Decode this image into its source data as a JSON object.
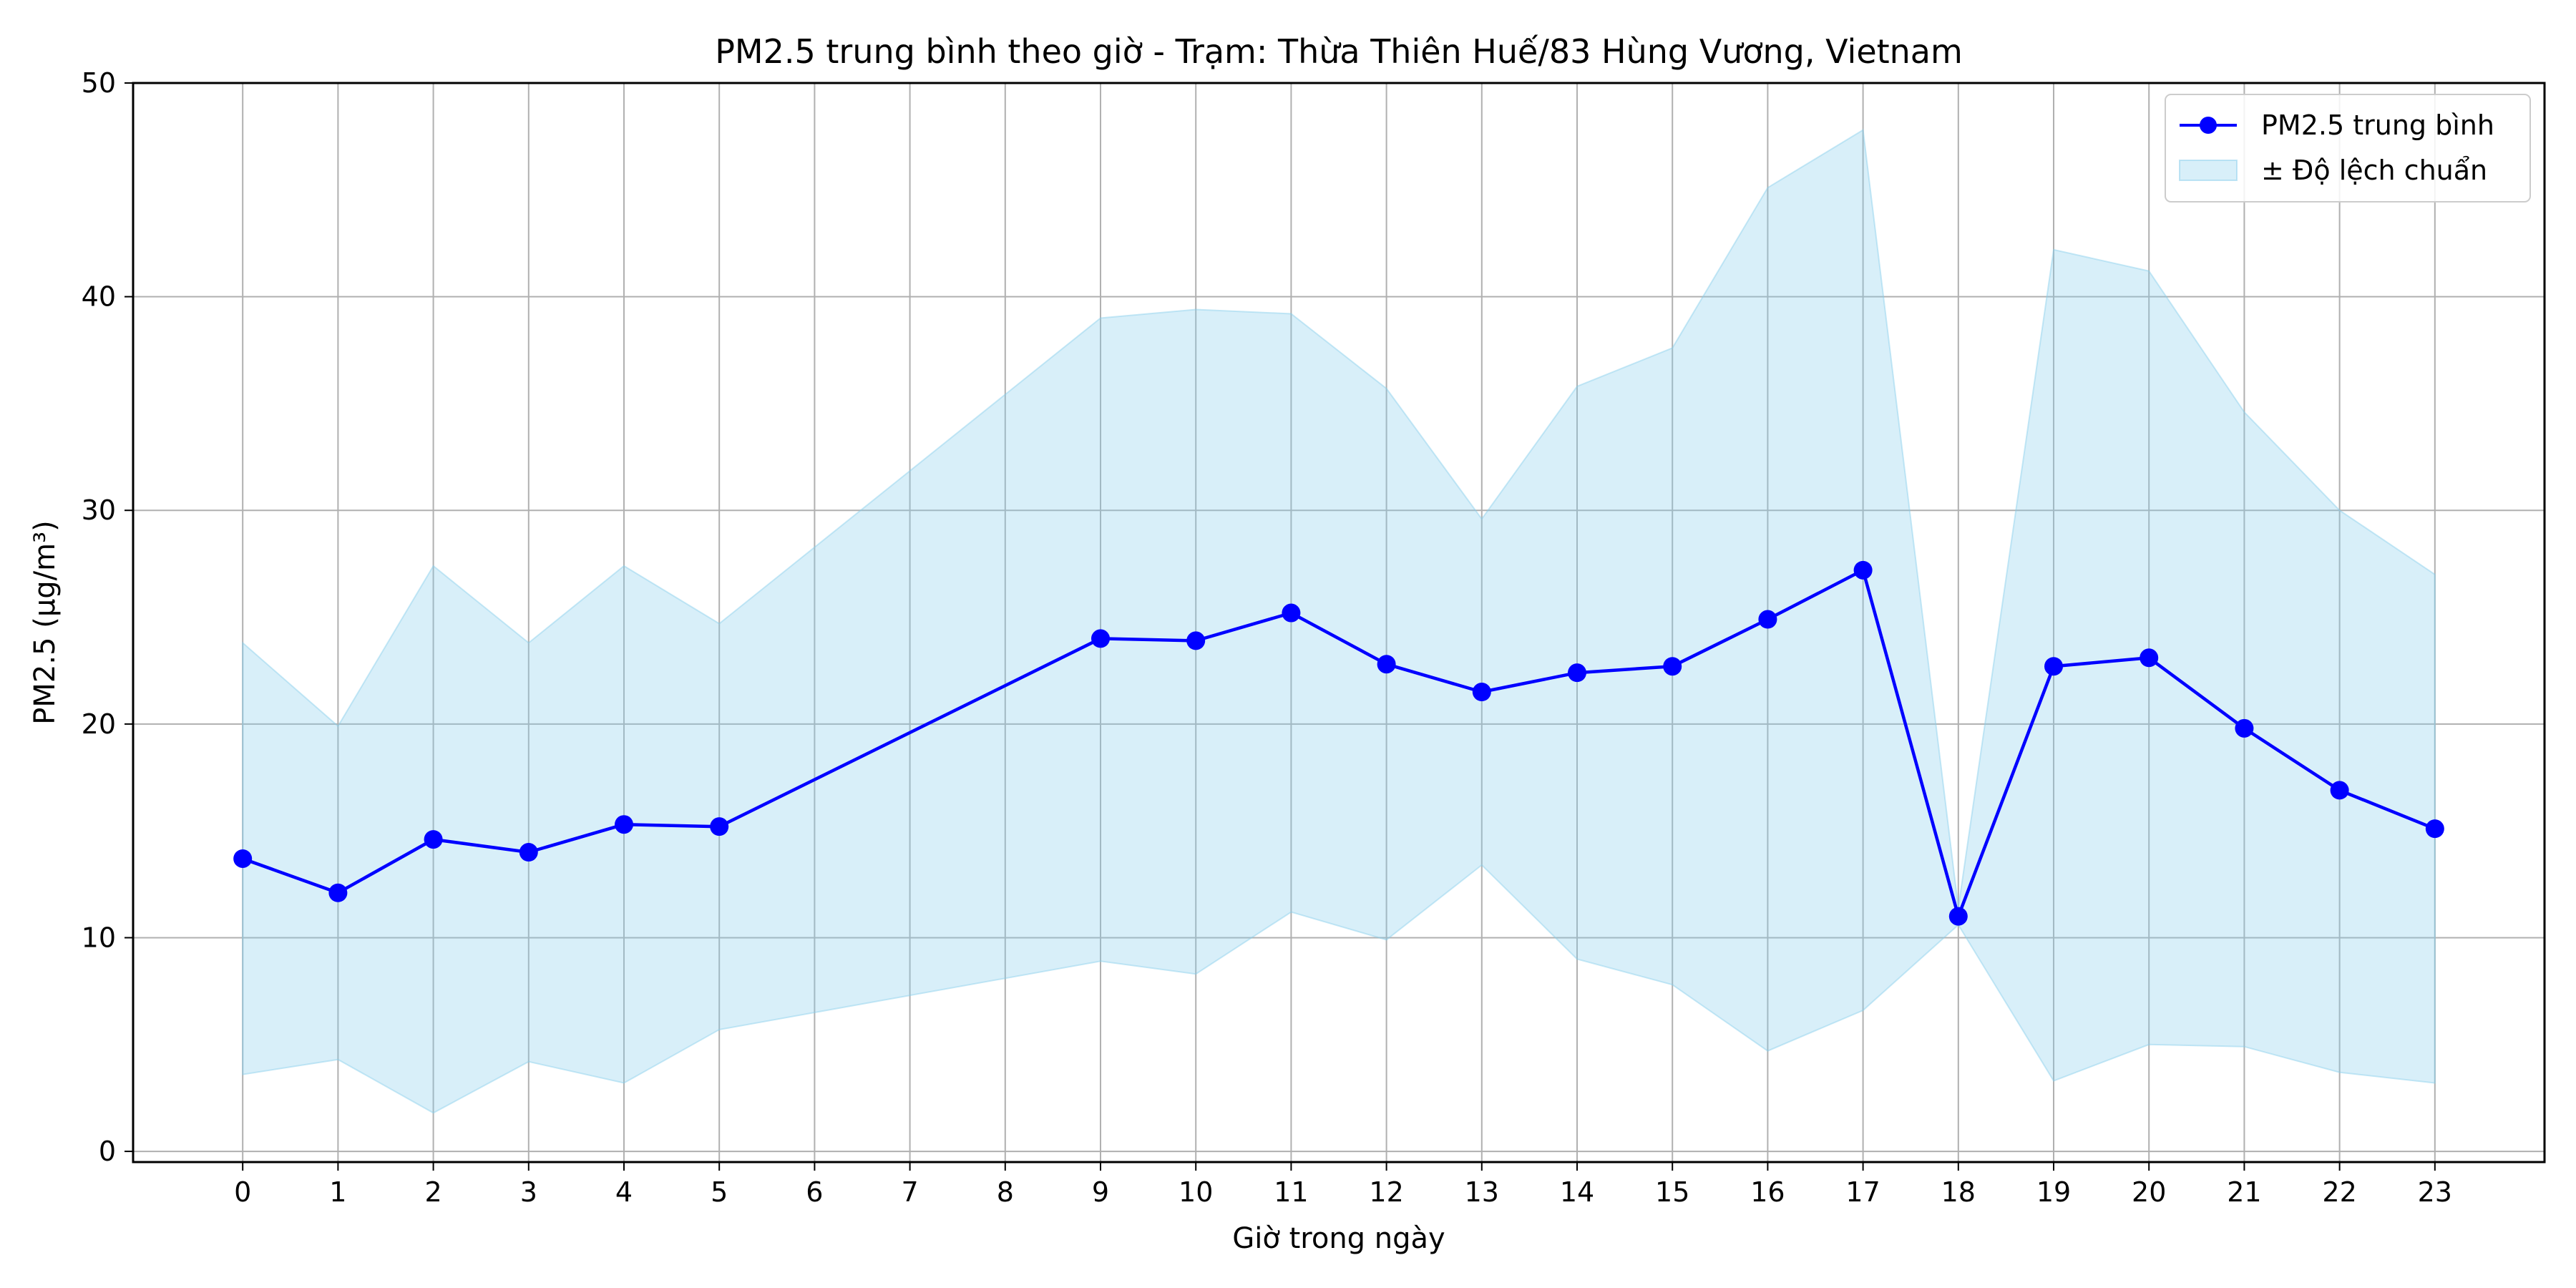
{
  "chart_data": {
    "type": "line",
    "title": "PM2.5 trung bình theo giờ - Trạm: Thừa Thiên Huế/83 Hùng Vương, Vietnam",
    "xlabel": "Giờ trong ngày",
    "ylabel": "PM2.5 (µg/m³)",
    "xlim": [
      -1.15,
      24.15
    ],
    "ylim": [
      -0.5,
      50
    ],
    "grid": true,
    "legend_position": "top-right",
    "x_ticks": [
      0,
      1,
      2,
      3,
      4,
      5,
      6,
      7,
      8,
      9,
      10,
      11,
      12,
      13,
      14,
      15,
      16,
      17,
      18,
      19,
      20,
      21,
      22,
      23
    ],
    "y_ticks": [
      0,
      10,
      20,
      30,
      40,
      50
    ],
    "series": [
      {
        "name": "PM2.5 trung bình",
        "color": "#0000ff",
        "marker": "circle",
        "x": [
          0,
          1,
          2,
          3,
          4,
          5,
          9,
          10,
          11,
          12,
          13,
          14,
          15,
          16,
          17,
          18,
          19,
          20,
          21,
          22,
          23
        ],
        "values": [
          13.7,
          12.1,
          14.6,
          14.0,
          15.3,
          15.2,
          24.0,
          23.9,
          25.2,
          22.8,
          21.5,
          22.4,
          22.7,
          24.9,
          27.2,
          11.0,
          22.7,
          23.1,
          19.8,
          16.9,
          15.1
        ]
      }
    ],
    "band": {
      "name": "± Độ lệch chuẩn",
      "color": "#87ceeb",
      "opacity": 0.32,
      "x": [
        0,
        1,
        2,
        3,
        4,
        5,
        9,
        10,
        11,
        12,
        13,
        14,
        15,
        16,
        17,
        18,
        19,
        20,
        21,
        22,
        23
      ],
      "upper": [
        23.8,
        19.9,
        27.4,
        23.8,
        27.4,
        24.7,
        39.0,
        39.4,
        39.2,
        35.7,
        29.6,
        35.8,
        37.6,
        45.1,
        47.8,
        11.4,
        42.2,
        41.2,
        34.6,
        30.0,
        27.0
      ],
      "lower": [
        3.6,
        4.3,
        1.8,
        4.2,
        3.2,
        5.7,
        8.9,
        8.3,
        11.2,
        9.9,
        13.4,
        9.0,
        7.8,
        4.7,
        6.6,
        10.6,
        3.3,
        5.0,
        4.9,
        3.7,
        3.2
      ]
    }
  }
}
